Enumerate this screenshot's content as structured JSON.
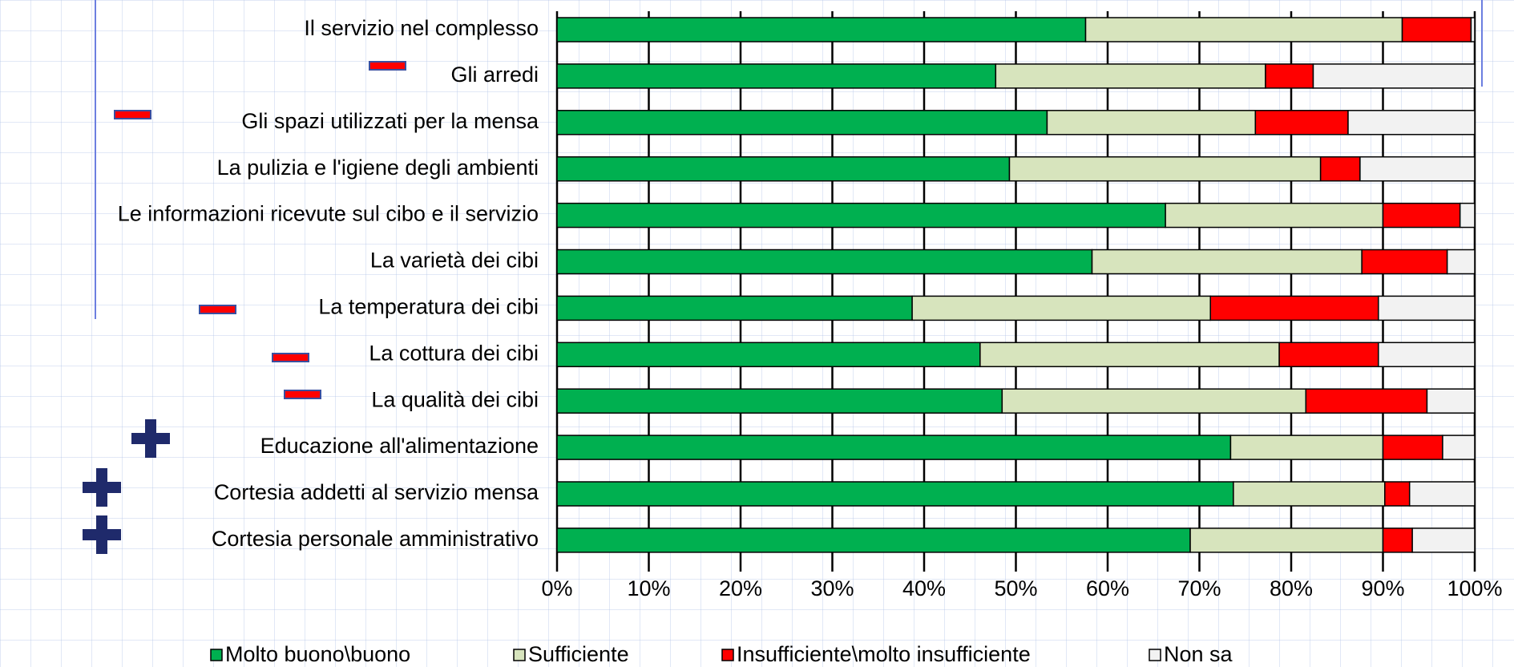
{
  "chart_data": {
    "type": "stacked-barh",
    "categories": [
      "Il servizio nel complesso",
      "Gli arredi",
      "Gli spazi utilizzati per la mensa",
      "La pulizia e l'igiene degli ambienti",
      "Le informazioni ricevute sul cibo e il servizio",
      "La varietà dei cibi",
      "La temperatura dei cibi",
      "La cottura dei cibi",
      "La qualità dei cibi",
      "Educazione all'alimentazione",
      "Cortesia addetti al servizio mensa",
      "Cortesia personale amministrativo"
    ],
    "series": [
      {
        "name": "Molto buono\\buono",
        "color": "#00b050",
        "values": [
          57.6,
          47.8,
          53.4,
          49.3,
          66.3,
          58.3,
          38.7,
          46.1,
          48.5,
          73.4,
          73.7,
          69.0
        ]
      },
      {
        "name": "Sufficiente",
        "color": "#d7e4bd",
        "values": [
          34.5,
          29.4,
          22.7,
          33.9,
          23.7,
          29.4,
          32.5,
          32.6,
          33.1,
          16.6,
          16.5,
          21.0
        ]
      },
      {
        "name": "Insufficiente\\molto insufficiente",
        "color": "#ff0000",
        "values": [
          7.5,
          5.2,
          10.1,
          4.3,
          8.4,
          9.3,
          18.3,
          10.8,
          13.2,
          6.5,
          2.7,
          3.2
        ]
      },
      {
        "name": "Non sa",
        "color": "#f2f2f2",
        "values": [
          0.4,
          17.6,
          13.8,
          12.5,
          1.6,
          3.0,
          10.5,
          10.5,
          5.2,
          3.5,
          7.1,
          6.8
        ]
      }
    ],
    "xlim": [
      0,
      100
    ],
    "xticks": [
      {
        "value": 0,
        "label": "0%"
      },
      {
        "value": 10,
        "label": "10%"
      },
      {
        "value": 20,
        "label": "20%"
      },
      {
        "value": 30,
        "label": "30%"
      },
      {
        "value": 40,
        "label": "40%"
      },
      {
        "value": 50,
        "label": "50%"
      },
      {
        "value": 60,
        "label": "60%"
      },
      {
        "value": 70,
        "label": "70%"
      },
      {
        "value": 80,
        "label": "80%"
      },
      {
        "value": 90,
        "label": "90%"
      },
      {
        "value": 100,
        "label": "100%"
      }
    ],
    "grid": true,
    "legend": "bottom"
  }
}
